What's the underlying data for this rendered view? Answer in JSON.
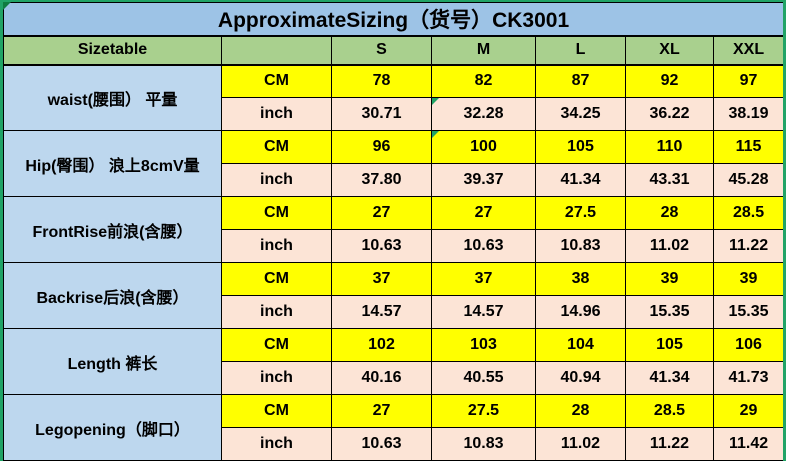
{
  "title": "ApproximateSizing（货号）CK3001",
  "header": {
    "label": "Sizetable",
    "sizes": [
      "S",
      "M",
      "L",
      "XL",
      "XXL"
    ]
  },
  "units": {
    "cm": "CM",
    "inch": "inch"
  },
  "rows": [
    {
      "label": "waist(腰围） 平量",
      "cm": [
        "78",
        "82",
        "87",
        "92",
        "97"
      ],
      "inch": [
        "30.71",
        "32.28",
        "34.25",
        "36.22",
        "38.19"
      ]
    },
    {
      "label": "Hip(臀围） 浪上8cmV量",
      "cm": [
        "96",
        "100",
        "105",
        "110",
        "115"
      ],
      "inch": [
        "37.80",
        "39.37",
        "41.34",
        "43.31",
        "45.28"
      ]
    },
    {
      "label": "FrontRise前浪(含腰）",
      "cm": [
        "27",
        "27",
        "27.5",
        "28",
        "28.5"
      ],
      "inch": [
        "10.63",
        "10.63",
        "10.83",
        "11.02",
        "11.22"
      ]
    },
    {
      "label": "Backrise后浪(含腰）",
      "cm": [
        "37",
        "37",
        "38",
        "39",
        "39"
      ],
      "inch": [
        "14.57",
        "14.57",
        "14.96",
        "15.35",
        "15.35"
      ]
    },
    {
      "label": "Length 裤长",
      "cm": [
        "102",
        "103",
        "104",
        "105",
        "106"
      ],
      "inch": [
        "40.16",
        "40.55",
        "40.94",
        "41.34",
        "41.73"
      ]
    },
    {
      "label": "Legopening（脚口）",
      "cm": [
        "27",
        "27.5",
        "28",
        "28.5",
        "29"
      ],
      "inch": [
        "10.63",
        "10.83",
        "11.02",
        "11.22",
        "11.42"
      ]
    }
  ],
  "colors": {
    "title_bg": "#9DC3E6",
    "header_bg": "#A9D08E",
    "label_bg": "#BDD7EE",
    "cm_row_bg": "#FFFF00",
    "inch_row_bg": "#FCE4D6",
    "frame_green": "#21A366",
    "border": "#000000"
  }
}
